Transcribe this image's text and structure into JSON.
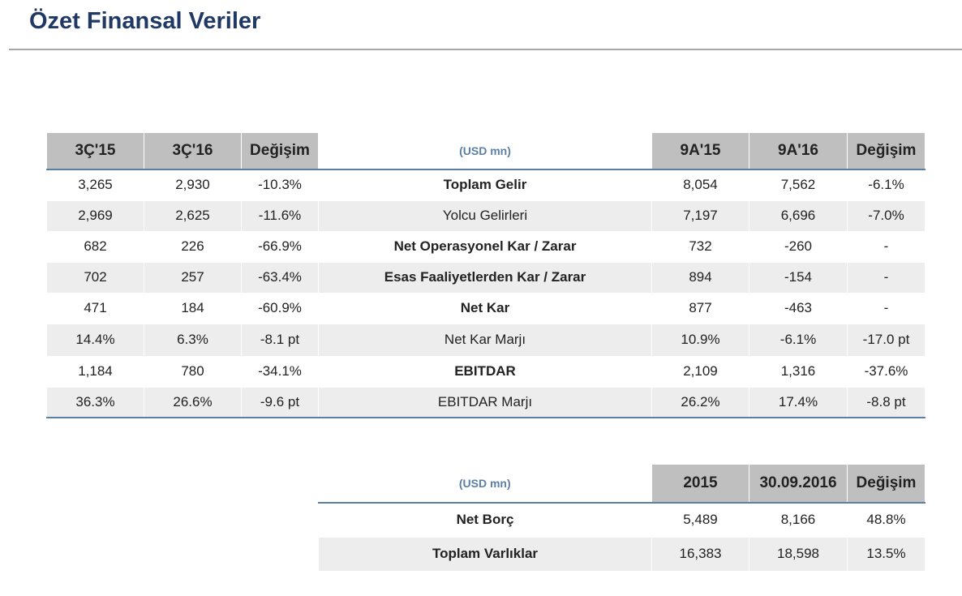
{
  "title": "Özet Finansal Veriler",
  "main_table": {
    "headers": [
      "3Ç'15",
      "3Ç'16",
      "Değişim",
      "(USD mn)",
      "9A'15",
      "9A'16",
      "Değişim"
    ],
    "rows": [
      {
        "label": "Toplam Gelir",
        "bold": true,
        "q15": "3,265",
        "q16": "2,930",
        "q_chg": "-10.3%",
        "a15": "8,054",
        "a16": "7,562",
        "a_chg": "-6.1%"
      },
      {
        "label": "Yolcu Gelirleri",
        "bold": false,
        "q15": "2,969",
        "q16": "2,625",
        "q_chg": "-11.6%",
        "a15": "7,197",
        "a16": "6,696",
        "a_chg": "-7.0%"
      },
      {
        "label": "Net Operasyonel Kar / Zarar",
        "bold": true,
        "q15": "682",
        "q16": "226",
        "q_chg": "-66.9%",
        "a15": "732",
        "a16": "-260",
        "a_chg": "-"
      },
      {
        "label": "Esas Faaliyetlerden Kar / Zarar",
        "bold": true,
        "q15": "702",
        "q16": "257",
        "q_chg": "-63.4%",
        "a15": "894",
        "a16": "-154",
        "a_chg": "-"
      },
      {
        "label": "Net Kar",
        "bold": true,
        "q15": "471",
        "q16": "184",
        "q_chg": "-60.9%",
        "a15": "877",
        "a16": "-463",
        "a_chg": "-"
      },
      {
        "label": "Net Kar Marjı",
        "bold": false,
        "q15": "14.4%",
        "q16": "6.3%",
        "q_chg": "-8.1 pt",
        "a15": "10.9%",
        "a16": "-6.1%",
        "a_chg": "-17.0 pt"
      },
      {
        "label": "EBITDAR",
        "bold": true,
        "q15": "1,184",
        "q16": "780",
        "q_chg": "-34.1%",
        "a15": "2,109",
        "a16": "1,316",
        "a_chg": "-37.6%"
      },
      {
        "label": "EBITDAR Marjı",
        "bold": false,
        "q15": "36.3%",
        "q16": "26.6%",
        "q_chg": "-9.6 pt",
        "a15": "26.2%",
        "a16": "17.4%",
        "a_chg": "-8.8 pt"
      }
    ]
  },
  "debt_table": {
    "headers": [
      "(USD mn)",
      "2015",
      "30.09.2016",
      "Değişim"
    ],
    "rows": [
      {
        "label": "Net Borç",
        "v2015": "5,489",
        "v2016": "8,166",
        "chg": "48.8%"
      },
      {
        "label": "Toplam Varlıklar",
        "v2015": "16,383",
        "v2016": "18,598",
        "chg": "13.5%"
      }
    ]
  },
  "colors": {
    "title": "#1f3864",
    "header_bg": "#bfbfbf",
    "row_shade": "#ededed",
    "rule_blue": "#5b7fa6",
    "unit_text": "#5b7fa6"
  }
}
